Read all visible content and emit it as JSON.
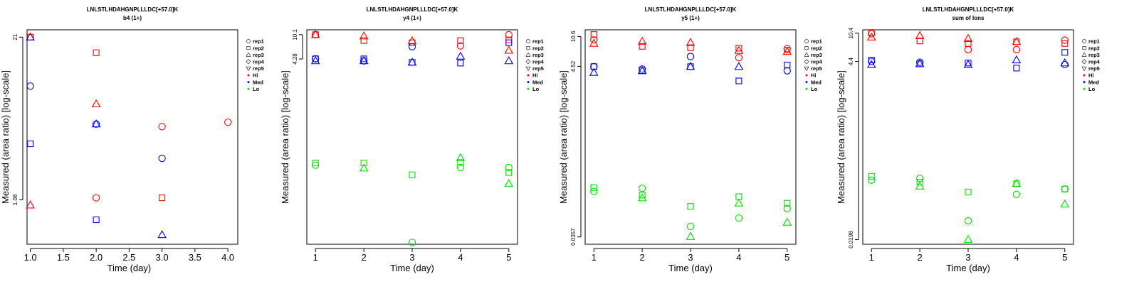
{
  "figure_title": "LNLSTLHDAHGNPLLLDC[+57.0]K",
  "legend_entries": [
    {
      "label": "rep1",
      "kind": "shape",
      "shape": "circle"
    },
    {
      "label": "rep2",
      "kind": "shape",
      "shape": "square"
    },
    {
      "label": "rep3",
      "kind": "shape",
      "shape": "triangle-up"
    },
    {
      "label": "rep4",
      "kind": "shape",
      "shape": "diamond"
    },
    {
      "label": "rep5",
      "kind": "shape",
      "shape": "triangle-down"
    },
    {
      "label": "Hi",
      "kind": "color",
      "color": "#ff0000"
    },
    {
      "label": "Med",
      "kind": "color",
      "color": "#0000ff"
    },
    {
      "label": "Lo",
      "kind": "color",
      "color": "#00dd00"
    }
  ],
  "colors": {
    "Hi": "#ff0000",
    "Med": "#0000ff",
    "Lo": "#00dd00"
  },
  "chart_data": [
    {
      "type": "scatter",
      "title": "LNLSTLHDAHGNPLLLDC[+57.0]K",
      "subtitle": "b4 (1+)",
      "xlabel": "Time (day)",
      "ylabel": "Measured (area ratio) [log-scale]",
      "log_y": true,
      "xlim": [
        0.95,
        4.15
      ],
      "ylim": [
        0.48,
        24
      ],
      "x_ticks": [
        1.0,
        1.5,
        2.0,
        2.5,
        3.0,
        3.5,
        4.0
      ],
      "x_tick_labels": [
        "1.0",
        "1.5",
        "2.0",
        "2.5",
        "3.0",
        "3.5",
        "4.0"
      ],
      "y_ticks": [
        1.08,
        21
      ],
      "y_tick_labels": [
        "1.08",
        "21"
      ],
      "points": [
        {
          "x": 1,
          "y": 21,
          "rep": "rep2",
          "level": "Hi"
        },
        {
          "x": 1,
          "y": 21,
          "rep": "rep3",
          "level": "Med"
        },
        {
          "x": 1,
          "y": 8.6,
          "rep": "rep1",
          "level": "Med"
        },
        {
          "x": 1,
          "y": 3.0,
          "rep": "rep2",
          "level": "Med"
        },
        {
          "x": 1,
          "y": 0.98,
          "rep": "rep3",
          "level": "Hi"
        },
        {
          "x": 2,
          "y": 15.8,
          "rep": "rep2",
          "level": "Hi"
        },
        {
          "x": 2,
          "y": 6.2,
          "rep": "rep3",
          "level": "Hi"
        },
        {
          "x": 2,
          "y": 4.3,
          "rep": "rep1",
          "level": "Med"
        },
        {
          "x": 2,
          "y": 4.3,
          "rep": "rep3",
          "level": "Med"
        },
        {
          "x": 2,
          "y": 1.12,
          "rep": "rep1",
          "level": "Hi"
        },
        {
          "x": 2,
          "y": 0.75,
          "rep": "rep2",
          "level": "Med"
        },
        {
          "x": 3,
          "y": 4.1,
          "rep": "rep1",
          "level": "Hi"
        },
        {
          "x": 3,
          "y": 2.3,
          "rep": "rep1",
          "level": "Med"
        },
        {
          "x": 3,
          "y": 1.12,
          "rep": "rep2",
          "level": "Hi"
        },
        {
          "x": 3,
          "y": 0.57,
          "rep": "rep3",
          "level": "Med"
        },
        {
          "x": 4,
          "y": 4.45,
          "rep": "rep1",
          "level": "Hi"
        }
      ]
    },
    {
      "type": "scatter",
      "title": "LNLSTLHDAHGNPLLLDC[+57.0]K",
      "subtitle": "y4 (1+)",
      "xlabel": "Time (day)",
      "ylabel": "Measured (area ratio) [log-scale]",
      "log_y": true,
      "xlim": [
        0.82,
        5.18
      ],
      "ylim": [
        0.0061,
        12
      ],
      "x_ticks": [
        1,
        2,
        3,
        4,
        5
      ],
      "x_tick_labels": [
        "1",
        "2",
        "3",
        "4",
        "5"
      ],
      "y_ticks": [
        4.28,
        10.1
      ],
      "y_tick_labels": [
        "4.28",
        "10.1"
      ],
      "points": [
        {
          "x": 1,
          "y": 10.1,
          "rep": "rep1",
          "level": "Hi"
        },
        {
          "x": 1,
          "y": 10.1,
          "rep": "rep2",
          "level": "Hi"
        },
        {
          "x": 1,
          "y": 10.1,
          "rep": "rep3",
          "level": "Hi"
        },
        {
          "x": 1,
          "y": 4.3,
          "rep": "rep1",
          "level": "Med"
        },
        {
          "x": 1,
          "y": 4.3,
          "rep": "rep2",
          "level": "Med"
        },
        {
          "x": 1,
          "y": 4.0,
          "rep": "rep3",
          "level": "Med"
        },
        {
          "x": 1,
          "y": 0.108,
          "rep": "rep2",
          "level": "Lo"
        },
        {
          "x": 1,
          "y": 0.1,
          "rep": "rep1",
          "level": "Lo"
        },
        {
          "x": 2,
          "y": 9.6,
          "rep": "rep3",
          "level": "Hi"
        },
        {
          "x": 2,
          "y": 8.2,
          "rep": "rep2",
          "level": "Hi"
        },
        {
          "x": 2,
          "y": 4.3,
          "rep": "rep2",
          "level": "Med"
        },
        {
          "x": 2,
          "y": 4.0,
          "rep": "rep1",
          "level": "Med"
        },
        {
          "x": 2,
          "y": 4.0,
          "rep": "rep3",
          "level": "Med"
        },
        {
          "x": 2,
          "y": 0.108,
          "rep": "rep2",
          "level": "Lo"
        },
        {
          "x": 2,
          "y": 0.09,
          "rep": "rep3",
          "level": "Lo"
        },
        {
          "x": 3,
          "y": 8.1,
          "rep": "rep3",
          "level": "Hi"
        },
        {
          "x": 3,
          "y": 7.6,
          "rep": "rep2",
          "level": "Hi"
        },
        {
          "x": 3,
          "y": 6.6,
          "rep": "rep1",
          "level": "Med"
        },
        {
          "x": 3,
          "y": 3.8,
          "rep": "rep3",
          "level": "Med"
        },
        {
          "x": 3,
          "y": 3.8,
          "rep": "rep2",
          "level": "Med"
        },
        {
          "x": 3,
          "y": 0.071,
          "rep": "rep2",
          "level": "Lo"
        },
        {
          "x": 3,
          "y": 0.0065,
          "rep": "rep1",
          "level": "Lo"
        },
        {
          "x": 4,
          "y": 8.2,
          "rep": "rep2",
          "level": "Hi"
        },
        {
          "x": 4,
          "y": 6.8,
          "rep": "rep1",
          "level": "Hi"
        },
        {
          "x": 4,
          "y": 4.7,
          "rep": "rep3",
          "level": "Med"
        },
        {
          "x": 4,
          "y": 3.7,
          "rep": "rep2",
          "level": "Med"
        },
        {
          "x": 4,
          "y": 0.13,
          "rep": "rep3",
          "level": "Lo"
        },
        {
          "x": 4,
          "y": 0.11,
          "rep": "rep2",
          "level": "Lo"
        },
        {
          "x": 4,
          "y": 0.092,
          "rep": "rep1",
          "level": "Lo"
        },
        {
          "x": 5,
          "y": 10.1,
          "rep": "rep1",
          "level": "Hi"
        },
        {
          "x": 5,
          "y": 8.4,
          "rep": "rep2",
          "level": "Hi"
        },
        {
          "x": 5,
          "y": 5.8,
          "rep": "rep3",
          "level": "Hi"
        },
        {
          "x": 5,
          "y": 7.6,
          "rep": "rep2",
          "level": "Med"
        },
        {
          "x": 5,
          "y": 4.0,
          "rep": "rep3",
          "level": "Med"
        },
        {
          "x": 5,
          "y": 0.092,
          "rep": "rep1",
          "level": "Lo"
        },
        {
          "x": 5,
          "y": 0.077,
          "rep": "rep2",
          "level": "Lo"
        },
        {
          "x": 5,
          "y": 0.052,
          "rep": "rep3",
          "level": "Lo"
        }
      ]
    },
    {
      "type": "scatter",
      "title": "LNLSTLHDAHGNPLLLDC[+57.0]K",
      "subtitle": "y5 (1+)",
      "xlabel": "Time (day)",
      "ylabel": "Measured (area ratio) [log-scale]",
      "log_y": true,
      "xlim": [
        0.82,
        5.18
      ],
      "ylim": [
        0.029,
        12.8
      ],
      "x_ticks": [
        1,
        2,
        3,
        4,
        5
      ],
      "x_tick_labels": [
        "1",
        "2",
        "3",
        "4",
        "5"
      ],
      "y_ticks": [
        0.0357,
        4.52,
        10.6
      ],
      "y_tick_labels": [
        "0.0357",
        "4.52",
        "10.6"
      ],
      "points": [
        {
          "x": 1,
          "y": 11.2,
          "rep": "rep2",
          "level": "Hi"
        },
        {
          "x": 1,
          "y": 9.6,
          "rep": "rep1",
          "level": "Hi"
        },
        {
          "x": 1,
          "y": 8.7,
          "rep": "rep3",
          "level": "Hi"
        },
        {
          "x": 1,
          "y": 4.5,
          "rep": "rep2",
          "level": "Med"
        },
        {
          "x": 1,
          "y": 4.5,
          "rep": "rep1",
          "level": "Med"
        },
        {
          "x": 1,
          "y": 3.8,
          "rep": "rep3",
          "level": "Med"
        },
        {
          "x": 1,
          "y": 0.145,
          "rep": "rep2",
          "level": "Lo"
        },
        {
          "x": 1,
          "y": 0.13,
          "rep": "rep1",
          "level": "Lo"
        },
        {
          "x": 2,
          "y": 9.2,
          "rep": "rep3",
          "level": "Hi"
        },
        {
          "x": 2,
          "y": 8.0,
          "rep": "rep2",
          "level": "Hi"
        },
        {
          "x": 2,
          "y": 4.2,
          "rep": "rep1",
          "level": "Med"
        },
        {
          "x": 2,
          "y": 4.0,
          "rep": "rep2",
          "level": "Med"
        },
        {
          "x": 2,
          "y": 4.0,
          "rep": "rep3",
          "level": "Med"
        },
        {
          "x": 2,
          "y": 0.142,
          "rep": "rep1",
          "level": "Lo"
        },
        {
          "x": 2,
          "y": 0.117,
          "rep": "rep2",
          "level": "Lo"
        },
        {
          "x": 2,
          "y": 0.108,
          "rep": "rep3",
          "level": "Lo"
        },
        {
          "x": 3,
          "y": 8.9,
          "rep": "rep3",
          "level": "Hi"
        },
        {
          "x": 3,
          "y": 7.7,
          "rep": "rep2",
          "level": "Hi"
        },
        {
          "x": 3,
          "y": 6.0,
          "rep": "rep1",
          "level": "Med"
        },
        {
          "x": 3,
          "y": 4.5,
          "rep": "rep2",
          "level": "Med"
        },
        {
          "x": 3,
          "y": 4.5,
          "rep": "rep3",
          "level": "Med"
        },
        {
          "x": 3,
          "y": 0.085,
          "rep": "rep2",
          "level": "Lo"
        },
        {
          "x": 3,
          "y": 0.048,
          "rep": "rep1",
          "level": "Lo"
        },
        {
          "x": 3,
          "y": 0.036,
          "rep": "rep3",
          "level": "Lo"
        },
        {
          "x": 4,
          "y": 7.6,
          "rep": "rep2",
          "level": "Hi"
        },
        {
          "x": 4,
          "y": 7.1,
          "rep": "rep3",
          "level": "Hi"
        },
        {
          "x": 4,
          "y": 5.8,
          "rep": "rep1",
          "level": "Hi"
        },
        {
          "x": 4,
          "y": 4.5,
          "rep": "rep3",
          "level": "Med"
        },
        {
          "x": 4,
          "y": 3.0,
          "rep": "rep2",
          "level": "Med"
        },
        {
          "x": 4,
          "y": 0.112,
          "rep": "rep2",
          "level": "Lo"
        },
        {
          "x": 4,
          "y": 0.093,
          "rep": "rep3",
          "level": "Lo"
        },
        {
          "x": 4,
          "y": 0.061,
          "rep": "rep1",
          "level": "Lo"
        },
        {
          "x": 5,
          "y": 7.5,
          "rep": "rep1",
          "level": "Hi"
        },
        {
          "x": 5,
          "y": 7.2,
          "rep": "rep2",
          "level": "Hi"
        },
        {
          "x": 5,
          "y": 6.9,
          "rep": "rep3",
          "level": "Hi"
        },
        {
          "x": 5,
          "y": 4.7,
          "rep": "rep2",
          "level": "Med"
        },
        {
          "x": 5,
          "y": 4.0,
          "rep": "rep1",
          "level": "Med"
        },
        {
          "x": 5,
          "y": 0.093,
          "rep": "rep2",
          "level": "Lo"
        },
        {
          "x": 5,
          "y": 0.08,
          "rep": "rep1",
          "level": "Lo"
        },
        {
          "x": 5,
          "y": 0.054,
          "rep": "rep3",
          "level": "Lo"
        }
      ]
    },
    {
      "type": "scatter",
      "title": "LNLSTLHDAHGNPLLLDC[+57.0]K",
      "subtitle": "sum of Ions",
      "xlabel": "Time (day)",
      "ylabel": "Measured (area ratio) [log-scale]",
      "log_y": true,
      "xlim": [
        0.82,
        5.18
      ],
      "ylim": [
        0.0172,
        11.5
      ],
      "x_ticks": [
        1,
        2,
        3,
        4,
        5
      ],
      "x_tick_labels": [
        "1",
        "2",
        "3",
        "4",
        "5"
      ],
      "y_ticks": [
        0.0198,
        4.4,
        10.4
      ],
      "y_tick_labels": [
        "0.0198",
        "4.4",
        "10.4"
      ],
      "points": [
        {
          "x": 1,
          "y": 10.6,
          "rep": "rep2",
          "level": "Hi"
        },
        {
          "x": 1,
          "y": 10.2,
          "rep": "rep1",
          "level": "Hi"
        },
        {
          "x": 1,
          "y": 9.2,
          "rep": "rep3",
          "level": "Hi"
        },
        {
          "x": 1,
          "y": 4.6,
          "rep": "rep2",
          "level": "Med"
        },
        {
          "x": 1,
          "y": 4.4,
          "rep": "rep1",
          "level": "Med"
        },
        {
          "x": 1,
          "y": 4.0,
          "rep": "rep3",
          "level": "Med"
        },
        {
          "x": 1,
          "y": 0.135,
          "rep": "rep2",
          "level": "Lo"
        },
        {
          "x": 1,
          "y": 0.12,
          "rep": "rep1",
          "level": "Lo"
        },
        {
          "x": 2,
          "y": 9.6,
          "rep": "rep3",
          "level": "Hi"
        },
        {
          "x": 2,
          "y": 8.2,
          "rep": "rep2",
          "level": "Hi"
        },
        {
          "x": 2,
          "y": 4.3,
          "rep": "rep1",
          "level": "Med"
        },
        {
          "x": 2,
          "y": 4.1,
          "rep": "rep2",
          "level": "Med"
        },
        {
          "x": 2,
          "y": 4.1,
          "rep": "rep3",
          "level": "Med"
        },
        {
          "x": 2,
          "y": 0.127,
          "rep": "rep1",
          "level": "Lo"
        },
        {
          "x": 2,
          "y": 0.113,
          "rep": "rep2",
          "level": "Lo"
        },
        {
          "x": 2,
          "y": 0.1,
          "rep": "rep3",
          "level": "Lo"
        },
        {
          "x": 3,
          "y": 8.8,
          "rep": "rep3",
          "level": "Hi"
        },
        {
          "x": 3,
          "y": 7.6,
          "rep": "rep2",
          "level": "Hi"
        },
        {
          "x": 3,
          "y": 6.3,
          "rep": "rep1",
          "level": "Hi"
        },
        {
          "x": 3,
          "y": 4.2,
          "rep": "rep2",
          "level": "Med"
        },
        {
          "x": 3,
          "y": 4.0,
          "rep": "rep3",
          "level": "Med"
        },
        {
          "x": 3,
          "y": 0.084,
          "rep": "rep2",
          "level": "Lo"
        },
        {
          "x": 3,
          "y": 0.035,
          "rep": "rep1",
          "level": "Lo"
        },
        {
          "x": 3,
          "y": 0.0198,
          "rep": "rep3",
          "level": "Lo"
        },
        {
          "x": 4,
          "y": 8.0,
          "rep": "rep2",
          "level": "Hi"
        },
        {
          "x": 4,
          "y": 8.0,
          "rep": "rep3",
          "level": "Hi"
        },
        {
          "x": 4,
          "y": 6.3,
          "rep": "rep1",
          "level": "Hi"
        },
        {
          "x": 4,
          "y": 4.6,
          "rep": "rep3",
          "level": "Med"
        },
        {
          "x": 4,
          "y": 3.6,
          "rep": "rep2",
          "level": "Med"
        },
        {
          "x": 4,
          "y": 0.108,
          "rep": "rep2",
          "level": "Lo"
        },
        {
          "x": 4,
          "y": 0.108,
          "rep": "rep3",
          "level": "Lo"
        },
        {
          "x": 4,
          "y": 0.078,
          "rep": "rep1",
          "level": "Lo"
        },
        {
          "x": 5,
          "y": 8.4,
          "rep": "rep1",
          "level": "Hi"
        },
        {
          "x": 5,
          "y": 7.6,
          "rep": "rep2",
          "level": "Hi"
        },
        {
          "x": 5,
          "y": 5.8,
          "rep": "rep2",
          "level": "Med"
        },
        {
          "x": 5,
          "y": 4.0,
          "rep": "rep1",
          "level": "Med"
        },
        {
          "x": 5,
          "y": 4.2,
          "rep": "rep3",
          "level": "Med"
        },
        {
          "x": 5,
          "y": 0.092,
          "rep": "rep2",
          "level": "Lo"
        },
        {
          "x": 5,
          "y": 0.092,
          "rep": "rep1",
          "level": "Lo"
        },
        {
          "x": 5,
          "y": 0.058,
          "rep": "rep3",
          "level": "Lo"
        }
      ]
    }
  ]
}
